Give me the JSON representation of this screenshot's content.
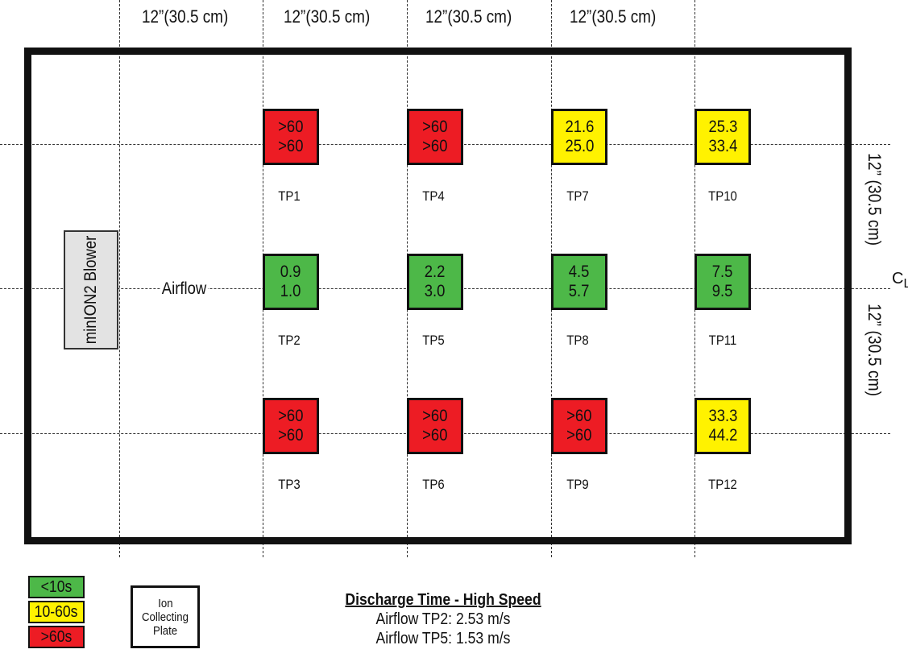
{
  "colors": {
    "green": "#4db848",
    "yellow": "#fff200",
    "red": "#ed1c24",
    "blower": "#e3e3e3"
  },
  "dimensions": {
    "columns": [
      "12”(30.5 cm)",
      "12”(30.5 cm)",
      "12”(30.5 cm)",
      "12”(30.5 cm)"
    ],
    "rows": [
      "12” (30.5 cm)",
      "12” (30.5 cm)"
    ]
  },
  "centerline": {
    "c": "C",
    "l": "L"
  },
  "blower": {
    "label": "minION2 Blower"
  },
  "airflow": {
    "label": "Airflow"
  },
  "test_points": [
    {
      "id": "TP1",
      "top": ">60",
      "bottom": ">60",
      "level": "red"
    },
    {
      "id": "TP2",
      "top": "0.9",
      "bottom": "1.0",
      "level": "green"
    },
    {
      "id": "TP3",
      "top": ">60",
      "bottom": ">60",
      "level": "red"
    },
    {
      "id": "TP4",
      "top": ">60",
      "bottom": ">60",
      "level": "red"
    },
    {
      "id": "TP5",
      "top": "2.2",
      "bottom": "3.0",
      "level": "green"
    },
    {
      "id": "TP6",
      "top": ">60",
      "bottom": ">60",
      "level": "red"
    },
    {
      "id": "TP7",
      "top": "21.6",
      "bottom": "25.0",
      "level": "yellow"
    },
    {
      "id": "TP8",
      "top": "4.5",
      "bottom": "5.7",
      "level": "green"
    },
    {
      "id": "TP9",
      "top": ">60",
      "bottom": ">60",
      "level": "red"
    },
    {
      "id": "TP10",
      "top": "25.3",
      "bottom": "33.4",
      "level": "yellow"
    },
    {
      "id": "TP11",
      "top": "7.5",
      "bottom": "9.5",
      "level": "green"
    },
    {
      "id": "TP12",
      "top": "33.3",
      "bottom": "44.2",
      "level": "yellow"
    }
  ],
  "legend": {
    "green": "<10s",
    "yellow": "10-60s",
    "red": ">60s",
    "plate": [
      "Ion",
      "Collecting",
      "Plate"
    ]
  },
  "caption": {
    "title": "Discharge Time - High Speed",
    "line1": "Airflow TP2: 2.53 m/s",
    "line2": "Airflow TP5: 1.53 m/s"
  }
}
